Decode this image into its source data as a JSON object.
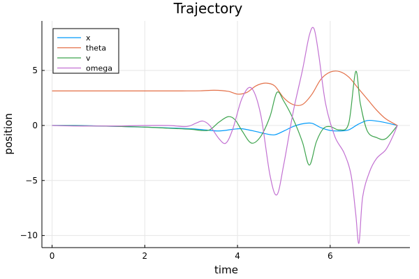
{
  "chart_data": {
    "type": "line",
    "title": "Trajectory",
    "xlabel": "time",
    "ylabel": "position",
    "xlim": [
      -0.22,
      7.72
    ],
    "ylim": [
      -11.1,
      9.5
    ],
    "xticks": [
      0,
      2,
      4,
      6
    ],
    "xtick_labels": [
      "0",
      "2",
      "4",
      "6"
    ],
    "yticks": [
      5,
      0,
      -5,
      -10
    ],
    "ytick_labels": [
      "5",
      "0",
      "−5",
      "−10"
    ],
    "grid": true,
    "legend_position": "top-left",
    "series": [
      {
        "name": "x",
        "color": "#009AFA",
        "x": [
          0,
          0.5,
          1.0,
          1.5,
          2.0,
          2.5,
          3.0,
          3.3,
          3.6,
          3.9,
          4.1,
          4.4,
          4.6,
          4.8,
          5.0,
          5.2,
          5.4,
          5.6,
          5.8,
          6.0,
          6.2,
          6.4,
          6.6,
          6.8,
          7.0,
          7.2,
          7.45
        ],
        "values": [
          0,
          0.0,
          -0.05,
          -0.1,
          -0.15,
          -0.22,
          -0.3,
          -0.4,
          -0.5,
          -0.35,
          -0.3,
          -0.55,
          -0.75,
          -0.85,
          -0.5,
          -0.1,
          0.15,
          0.2,
          -0.2,
          -0.45,
          -0.5,
          -0.4,
          0.1,
          0.45,
          0.4,
          0.25,
          0
        ]
      },
      {
        "name": "theta",
        "color": "#E36F47",
        "x": [
          0,
          1.0,
          2.0,
          2.8,
          3.2,
          3.5,
          3.8,
          4.0,
          4.2,
          4.4,
          4.6,
          4.8,
          5.0,
          5.2,
          5.4,
          5.6,
          5.8,
          6.0,
          6.2,
          6.4,
          6.6,
          6.8,
          7.0,
          7.2,
          7.45
        ],
        "values": [
          3.14,
          3.14,
          3.14,
          3.14,
          3.15,
          3.2,
          3.1,
          2.85,
          3.0,
          3.6,
          3.85,
          3.6,
          2.5,
          1.9,
          1.9,
          2.8,
          4.2,
          4.85,
          4.9,
          4.4,
          3.4,
          2.4,
          1.4,
          0.6,
          0
        ]
      },
      {
        "name": "v",
        "color": "#3EA44E",
        "x": [
          0,
          0.5,
          1.0,
          1.5,
          2.0,
          2.5,
          3.0,
          3.2,
          3.4,
          3.6,
          3.8,
          3.95,
          4.1,
          4.3,
          4.5,
          4.7,
          4.85,
          5.0,
          5.2,
          5.4,
          5.55,
          5.7,
          5.85,
          6.0,
          6.2,
          6.4,
          6.55,
          6.65,
          6.8,
          7.0,
          7.2,
          7.45
        ],
        "values": [
          0,
          -0.02,
          -0.05,
          -0.1,
          -0.15,
          -0.25,
          -0.35,
          -0.45,
          -0.4,
          0.3,
          0.8,
          0.5,
          -0.5,
          -1.6,
          -1.0,
          0.8,
          3.0,
          2.2,
          0.6,
          -1.5,
          -3.6,
          -1.5,
          -0.3,
          -0.1,
          -0.4,
          0.2,
          4.9,
          2.0,
          -0.5,
          -1.1,
          -1.2,
          0
        ]
      },
      {
        "name": "omega",
        "color": "#C271D2",
        "x": [
          0,
          0.5,
          1.0,
          1.5,
          2.0,
          2.5,
          2.9,
          3.1,
          3.25,
          3.4,
          3.6,
          3.75,
          3.9,
          4.1,
          4.3,
          4.5,
          4.7,
          4.85,
          5.0,
          5.2,
          5.4,
          5.55,
          5.65,
          5.75,
          5.9,
          6.1,
          6.3,
          6.45,
          6.55,
          6.62,
          6.7,
          6.85,
          7.0,
          7.2,
          7.35,
          7.45
        ],
        "values": [
          0,
          -0.05,
          -0.05,
          -0.05,
          0,
          0,
          -0.1,
          0.2,
          0.4,
          0,
          -1.2,
          -1.6,
          -0.3,
          2.5,
          3.4,
          1.0,
          -4.5,
          -6.3,
          -3.5,
          1.2,
          5.0,
          8.2,
          8.8,
          6.5,
          2.0,
          -1.0,
          -2.5,
          -4.5,
          -8.0,
          -10.7,
          -6.5,
          -4.2,
          -3.0,
          -2.2,
          -1.0,
          0
        ]
      }
    ]
  }
}
